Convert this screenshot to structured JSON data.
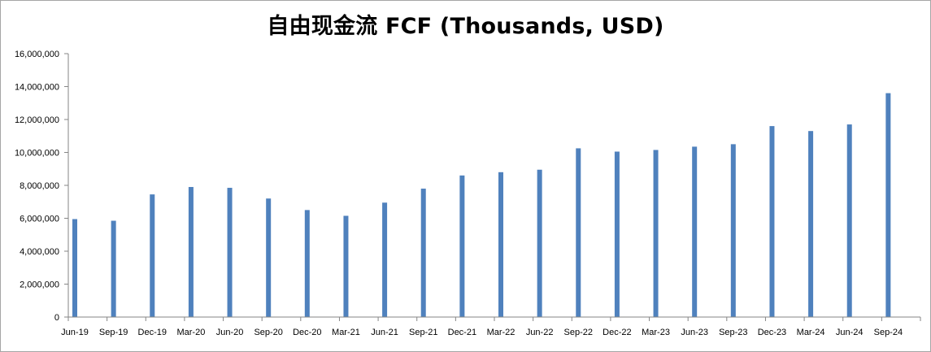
{
  "chart_data": {
    "type": "bar",
    "title": "自由现金流 FCF (Thousands, USD)",
    "xlabel": "",
    "ylabel": "",
    "categories": [
      "Jun-19",
      "Sep-19",
      "Dec-19",
      "Mar-20",
      "Jun-20",
      "Sep-20",
      "Dec-20",
      "Mar-21",
      "Jun-21",
      "Sep-21",
      "Dec-21",
      "Mar-22",
      "Jun-22",
      "Sep-22",
      "Dec-22",
      "Mar-23",
      "Jun-23",
      "Sep-23",
      "Dec-23",
      "Mar-24",
      "Jun-24",
      "Sep-24"
    ],
    "values": [
      5950000,
      5850000,
      7450000,
      7900000,
      7850000,
      7200000,
      6500000,
      6150000,
      6950000,
      7800000,
      8600000,
      8800000,
      8950000,
      10250000,
      10050000,
      10150000,
      10350000,
      10500000,
      11600000,
      11300000,
      11700000,
      13600000
    ],
    "ylim": [
      0,
      16000000
    ],
    "yticks": [
      "0",
      "2,000,000",
      "4,000,000",
      "6,000,000",
      "8,000,000",
      "10,000,000",
      "12,000,000",
      "14,000,000",
      "16,000,000"
    ],
    "grid": false,
    "legend": "none",
    "bar_color": "#4f81bd",
    "axis_color": "#868686"
  }
}
